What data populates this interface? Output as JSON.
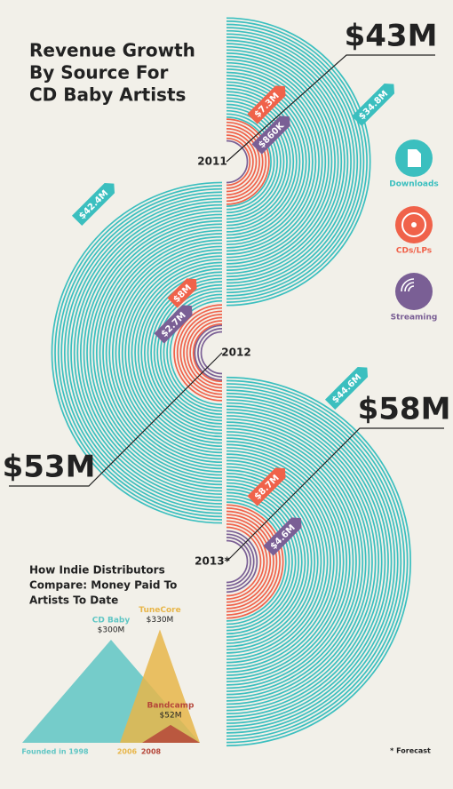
{
  "title_lines": [
    "Revenue Growth",
    "By Source For",
    "CD Baby Artists"
  ],
  "legend": [
    {
      "name": "Downloads",
      "color": "#3bbfbf"
    },
    {
      "name": "CDs/LPs",
      "color": "#f0624a"
    },
    {
      "name": "Streaming",
      "color": "#7a5f95"
    }
  ],
  "years": [
    {
      "year": "2011",
      "total": 43,
      "total_label": "$43M",
      "values": [
        34.8,
        7.3,
        0.86
      ],
      "value_labels": [
        "$34.8M",
        "$7.3M",
        "$860K"
      ]
    },
    {
      "year": "2012",
      "total": 53,
      "total_label": "$53M",
      "values": [
        42.4,
        8,
        2.7
      ],
      "value_labels": [
        "$42.4M",
        "$8M",
        "$2.7M"
      ]
    },
    {
      "year": "2013*",
      "total": 58,
      "total_label": "$58M",
      "values": [
        44.6,
        8.7,
        4.6
      ],
      "value_labels": [
        "$44.6M",
        "$8.7M",
        "$4.6M"
      ]
    }
  ],
  "distributors": {
    "title_lines": [
      "How Indie Distributors",
      "Compare: Money Paid To",
      "Artists To Date"
    ],
    "items": [
      {
        "name": "CD Baby",
        "value": 300,
        "value_label": "$300M",
        "start": "Founded in 1998",
        "color": "#5fc6c4"
      },
      {
        "name": "TuneCore",
        "value": 330,
        "value_label": "$330M",
        "start": "2006",
        "color": "#e8b64a"
      },
      {
        "name": "Bandcamp",
        "value": 52,
        "value_label": "$52M",
        "start": "2008",
        "color": "#b5473a"
      }
    ]
  },
  "note": "* Forecast"
}
